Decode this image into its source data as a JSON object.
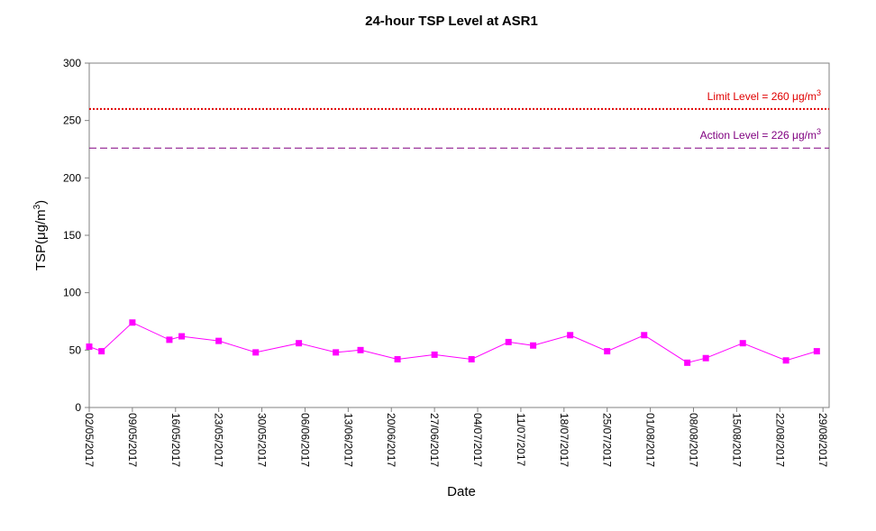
{
  "chart_data": {
    "type": "line",
    "title": "24-hour TSP Level at ASR1",
    "xlabel": "Date",
    "ylabel": "TSP(μg/m",
    "ylabel_sup": "3",
    "ylim": [
      0,
      300
    ],
    "yticks": [
      0,
      50,
      100,
      150,
      200,
      250,
      300
    ],
    "xlim": [
      "02/05/2017",
      "30/08/2017"
    ],
    "xtick_labels": [
      "02/05/2017",
      "09/05/2017",
      "16/05/2017",
      "23/05/2017",
      "30/05/2017",
      "06/06/2017",
      "13/06/2017",
      "20/06/2017",
      "27/06/2017",
      "04/07/2017",
      "11/07/2017",
      "18/07/2017",
      "25/07/2017",
      "01/08/2017",
      "08/08/2017",
      "15/08/2017",
      "22/08/2017",
      "29/08/2017"
    ],
    "grid": false,
    "legend": "none",
    "series": [
      {
        "color": "#ff00ff",
        "marker": "square",
        "points": [
          {
            "x": "02/05/2017",
            "y": 53
          },
          {
            "x": "04/05/2017",
            "y": 49
          },
          {
            "x": "09/05/2017",
            "y": 74
          },
          {
            "x": "15/05/2017",
            "y": 59
          },
          {
            "x": "17/05/2017",
            "y": 62
          },
          {
            "x": "23/05/2017",
            "y": 58
          },
          {
            "x": "29/05/2017",
            "y": 48
          },
          {
            "x": "05/06/2017",
            "y": 56
          },
          {
            "x": "11/06/2017",
            "y": 48
          },
          {
            "x": "15/06/2017",
            "y": 50
          },
          {
            "x": "21/06/2017",
            "y": 42
          },
          {
            "x": "27/06/2017",
            "y": 46
          },
          {
            "x": "03/07/2017",
            "y": 42
          },
          {
            "x": "09/07/2017",
            "y": 57
          },
          {
            "x": "13/07/2017",
            "y": 54
          },
          {
            "x": "19/07/2017",
            "y": 63
          },
          {
            "x": "25/07/2017",
            "y": 49
          },
          {
            "x": "31/07/2017",
            "y": 63
          },
          {
            "x": "07/08/2017",
            "y": 39
          },
          {
            "x": "10/08/2017",
            "y": 43
          },
          {
            "x": "16/08/2017",
            "y": 56
          },
          {
            "x": "23/08/2017",
            "y": 41
          },
          {
            "x": "28/08/2017",
            "y": 49
          }
        ]
      }
    ],
    "reference_lines": [
      {
        "label": "Limit Level = 260 μg/m",
        "label_sup": "3",
        "value": 260,
        "color": "#e00000",
        "style": "dotted"
      },
      {
        "label": "Action Level = 226 μg/m",
        "label_sup": "3",
        "value": 226,
        "color": "#800080",
        "style": "dashed"
      }
    ]
  }
}
